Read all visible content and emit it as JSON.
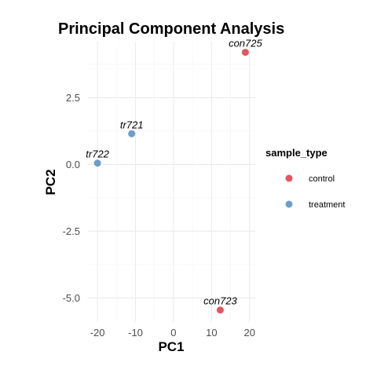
{
  "chart_data": {
    "type": "scatter",
    "title": "Principal Component Analysis",
    "xlabel": "PC1",
    "ylabel": "PC2",
    "xlim": [
      -22.5,
      21.5
    ],
    "ylim": [
      -5.9,
      4.6
    ],
    "x_ticks": [
      -20,
      -10,
      0,
      10,
      20
    ],
    "y_ticks": [
      2.5,
      0.0,
      -2.5,
      -5.0
    ],
    "x_tick_labels": [
      "-20",
      "-10",
      "0",
      "10",
      "20"
    ],
    "y_tick_labels": [
      "2.5",
      "0.0",
      "-2.5",
      "-5.0"
    ],
    "grid": true,
    "legend": {
      "title": "sample_type",
      "position": "right",
      "entries": [
        {
          "label": "control",
          "color": "#e4565e"
        },
        {
          "label": "treatment",
          "color": "#6c9ec9"
        }
      ]
    },
    "points": [
      {
        "label": "con725",
        "group": "control",
        "x": 18.9,
        "y": 4.2
      },
      {
        "label": "tr721",
        "group": "treatment",
        "x": -11.0,
        "y": 1.15
      },
      {
        "label": "tr722",
        "group": "treatment",
        "x": -20.0,
        "y": 0.05
      },
      {
        "label": "con723",
        "group": "control",
        "x": 12.3,
        "y": -5.45
      }
    ]
  }
}
